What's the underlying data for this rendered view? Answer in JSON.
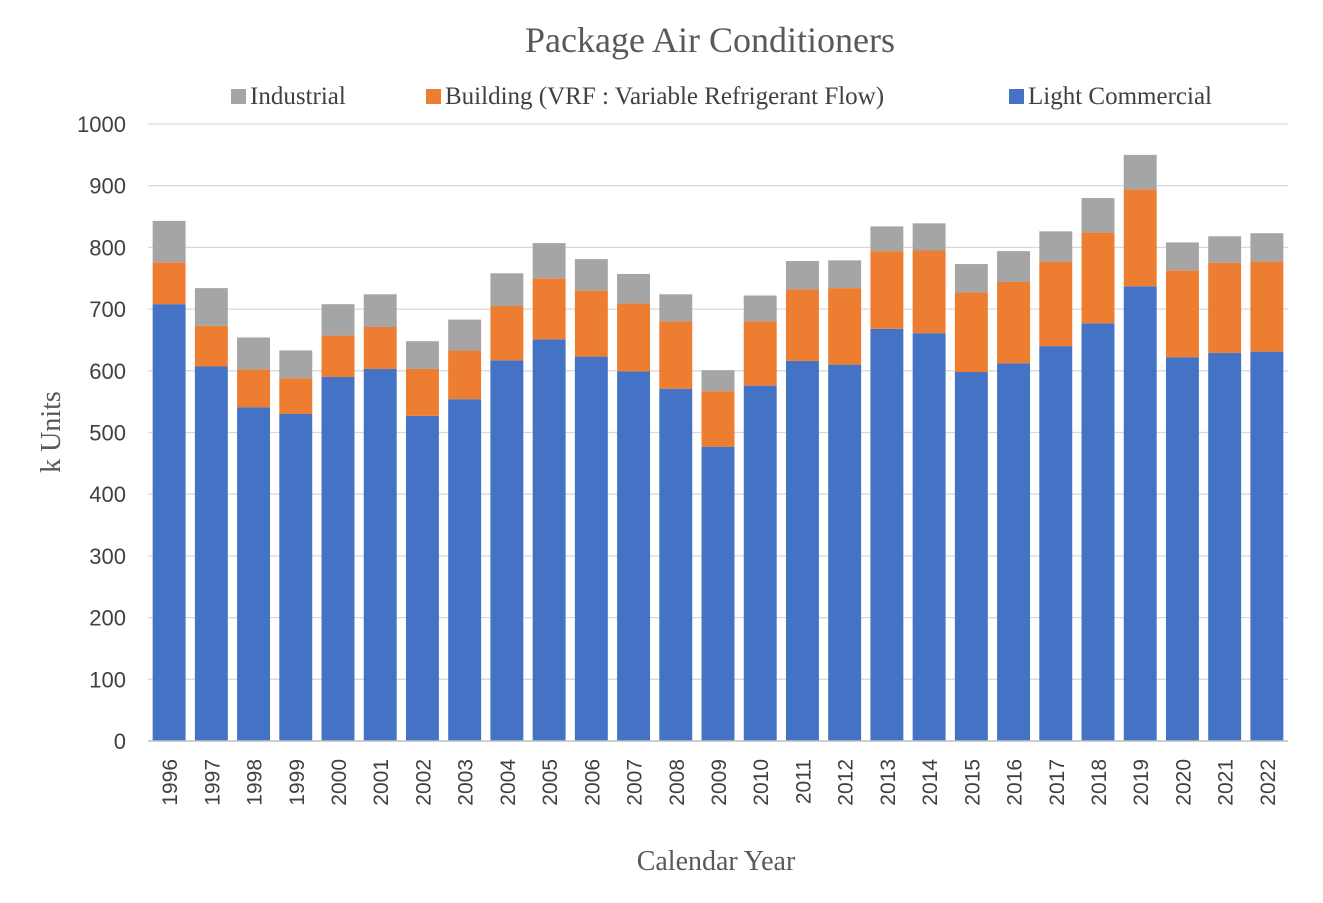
{
  "chart_data": {
    "type": "bar",
    "stacked": true,
    "title": "Package Air Conditioners",
    "xlabel": "Calendar Year",
    "ylabel": "k Units",
    "ylim": [
      0,
      1000
    ],
    "yticks": [
      0,
      100,
      200,
      300,
      400,
      500,
      600,
      700,
      800,
      900,
      1000
    ],
    "grid": true,
    "legend_position": "top",
    "categories": [
      "1996",
      "1997",
      "1998",
      "1999",
      "2000",
      "2001",
      "2002",
      "2003",
      "2004",
      "2005",
      "2006",
      "2007",
      "2008",
      "2009",
      "2010",
      "2011",
      "2012",
      "2013",
      "2014",
      "2015",
      "2016",
      "2017",
      "2018",
      "2019",
      "2020",
      "2021",
      "2022"
    ],
    "series": [
      {
        "name": "Light Commercial",
        "color": "#4472c4",
        "values": [
          708,
          607,
          541,
          530,
          590,
          603,
          527,
          554,
          617,
          651,
          623,
          599,
          571,
          477,
          576,
          616,
          610,
          668,
          661,
          598,
          612,
          640,
          677,
          737,
          622,
          629,
          631
        ]
      },
      {
        "name": "Building (VRF : Variable Refrigerant Flow)",
        "color": "#ed7d31",
        "values": [
          68,
          66,
          61,
          58,
          67,
          68,
          76,
          79,
          88,
          99,
          107,
          110,
          109,
          90,
          104,
          116,
          124,
          126,
          134,
          129,
          132,
          137,
          147,
          157,
          141,
          146,
          146
        ]
      },
      {
        "name": "Industrial",
        "color": "#a5a5a5",
        "values": [
          67,
          61,
          52,
          45,
          51,
          53,
          45,
          50,
          53,
          57,
          51,
          48,
          44,
          34,
          42,
          46,
          45,
          40,
          44,
          46,
          50,
          49,
          56,
          56,
          45,
          43,
          46
        ]
      }
    ],
    "legend_order": [
      "Industrial",
      "Building (VRF : Variable Refrigerant Flow)",
      "Light Commercial"
    ]
  }
}
